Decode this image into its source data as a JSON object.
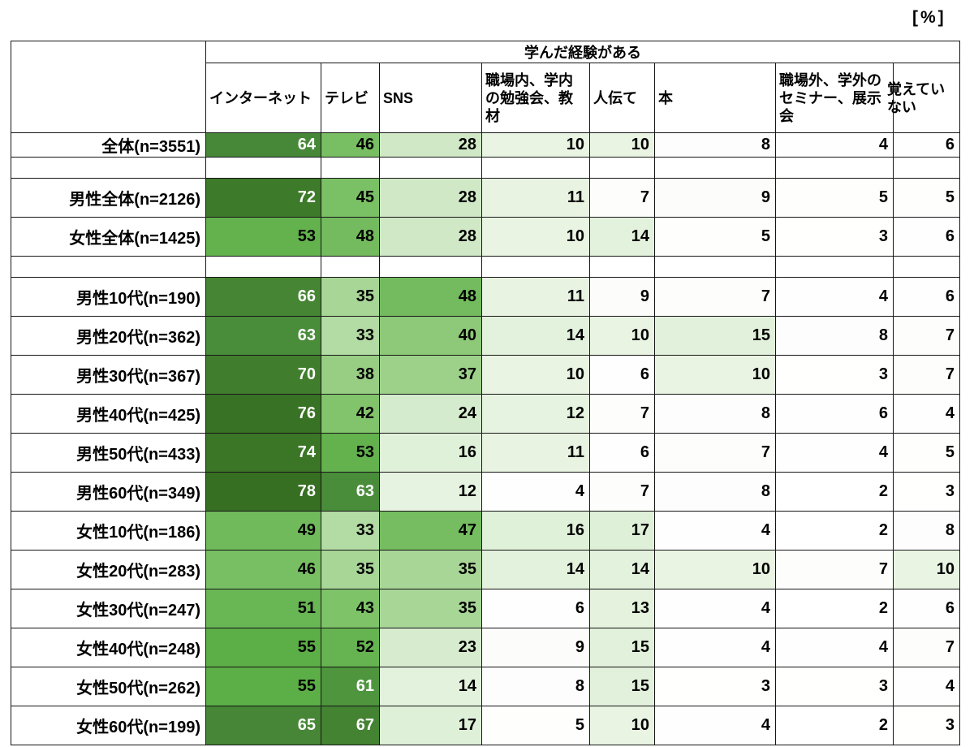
{
  "page": {
    "unit_label": "[%]"
  },
  "table": {
    "group_header": "学んだ経験がある"
  },
  "chart_data": {
    "type": "heatmap",
    "title": "学んだ経験がある",
    "unit": "[%]",
    "columns": [
      "インターネット",
      "テレビ",
      "SNS",
      "職場内、学内の勉強会、教材",
      "人伝て",
      "本",
      "職場外、学外のセミナー、展示会",
      "覚えていない"
    ],
    "rows": [
      {
        "label": "全体(n=3551)",
        "size": "short",
        "values": [
          64,
          46,
          28,
          10,
          10,
          8,
          4,
          6
        ]
      },
      {
        "spacer": true
      },
      {
        "label": "男性全体(n=2126)",
        "values": [
          72,
          45,
          28,
          11,
          7,
          9,
          5,
          5
        ]
      },
      {
        "label": "女性全体(n=1425)",
        "values": [
          53,
          48,
          28,
          10,
          14,
          5,
          3,
          6
        ]
      },
      {
        "spacer": true
      },
      {
        "label": "男性10代(n=190)",
        "values": [
          66,
          35,
          48,
          11,
          9,
          7,
          4,
          6
        ]
      },
      {
        "label": "男性20代(n=362)",
        "values": [
          63,
          33,
          40,
          14,
          10,
          15,
          8,
          7
        ]
      },
      {
        "label": "男性30代(n=367)",
        "values": [
          70,
          38,
          37,
          10,
          6,
          10,
          3,
          7
        ]
      },
      {
        "label": "男性40代(n=425)",
        "values": [
          76,
          42,
          24,
          12,
          7,
          8,
          6,
          4
        ]
      },
      {
        "label": "男性50代(n=433)",
        "values": [
          74,
          53,
          16,
          11,
          6,
          7,
          4,
          5
        ]
      },
      {
        "label": "男性60代(n=349)",
        "values": [
          78,
          63,
          12,
          4,
          7,
          8,
          2,
          3
        ]
      },
      {
        "label": "女性10代(n=186)",
        "values": [
          49,
          33,
          47,
          16,
          17,
          4,
          2,
          8
        ]
      },
      {
        "label": "女性20代(n=283)",
        "values": [
          46,
          35,
          35,
          14,
          14,
          10,
          7,
          10
        ]
      },
      {
        "label": "女性30代(n=247)",
        "values": [
          51,
          43,
          35,
          6,
          13,
          4,
          2,
          6
        ]
      },
      {
        "label": "女性40代(n=248)",
        "values": [
          55,
          52,
          23,
          9,
          15,
          4,
          4,
          7
        ]
      },
      {
        "label": "女性50代(n=262)",
        "values": [
          55,
          61,
          14,
          8,
          15,
          3,
          3,
          4
        ]
      },
      {
        "label": "女性60代(n=199)",
        "values": [
          65,
          67,
          17,
          5,
          10,
          4,
          2,
          3
        ]
      }
    ],
    "colormap": {
      "white_text_min": 60,
      "stops": [
        {
          "v": 2,
          "color": "#FFFFFF"
        },
        {
          "v": 9,
          "color": "#FCFDFB"
        },
        {
          "v": 10,
          "color": "#E9F4E3"
        },
        {
          "v": 17,
          "color": "#DFF0D8"
        },
        {
          "v": 28,
          "color": "#D0E8C6"
        },
        {
          "v": 35,
          "color": "#A8D697"
        },
        {
          "v": 42,
          "color": "#82C46B"
        },
        {
          "v": 49,
          "color": "#70BA5C"
        },
        {
          "v": 55,
          "color": "#5CAE46"
        },
        {
          "v": 64,
          "color": "#478838"
        },
        {
          "v": 72,
          "color": "#3D7A29"
        },
        {
          "v": 78,
          "color": "#366E22"
        }
      ]
    }
  }
}
